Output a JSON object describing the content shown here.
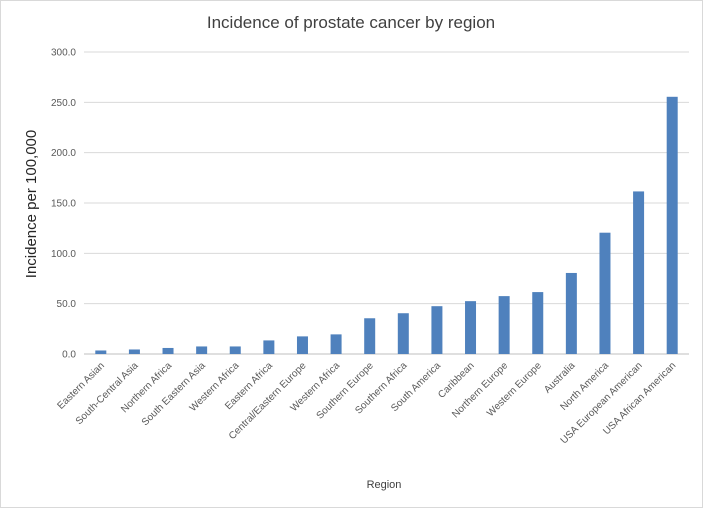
{
  "chart_data": {
    "type": "bar",
    "title": "Incidence of prostate cancer by region",
    "xlabel": "Region",
    "ylabel": "Incidence per 100,000",
    "ylim": [
      0,
      300
    ],
    "yticks": [
      "0.0",
      "50.0",
      "100.0",
      "150.0",
      "200.0",
      "250.0",
      "300.0"
    ],
    "grid": true,
    "color": "#4f81bd",
    "categories": [
      "Eastern Asian",
      "South-Central Asia",
      "Northern Africa",
      "South Eastern Asia",
      "Western Africa",
      "Eastern Africa",
      "Central/Eastern Europe",
      "Western Africa",
      "Southern Europe",
      "Southern Africa",
      "South America",
      "Caribbean",
      "Northern Europe",
      "Western Europe",
      "Australia",
      "North America",
      "USA European American",
      "USA African American"
    ],
    "values": [
      3.5,
      4.5,
      6,
      7.5,
      7.5,
      13.5,
      17.5,
      19.5,
      35.5,
      40.5,
      47.5,
      52.5,
      57.5,
      61.5,
      80.5,
      120.5,
      161.5,
      255.5
    ]
  }
}
